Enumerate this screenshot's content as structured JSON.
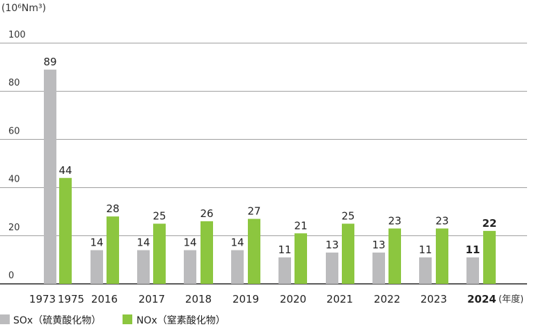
{
  "chart_data": {
    "type": "bar",
    "unit_label": "(10⁶Nm³)",
    "x_suffix": "(年度)",
    "categories": [
      "1973",
      "1975",
      "2016",
      "2017",
      "2018",
      "2019",
      "2020",
      "2021",
      "2022",
      "2023",
      "2024"
    ],
    "ylim": [
      0,
      100
    ],
    "yticks": [
      0,
      20,
      40,
      60,
      80,
      100
    ],
    "grid": true,
    "legend_position": "bottom-left",
    "highlight_category": "2024",
    "series": [
      {
        "name": "SOx（硫黄酸化物）",
        "color": "#bbbbbd",
        "values": [
          89,
          null,
          14,
          14,
          14,
          14,
          11,
          13,
          13,
          11,
          11
        ]
      },
      {
        "name": "NOx（窒素酸化物）",
        "color": "#8cc63f",
        "values": [
          null,
          44,
          28,
          25,
          26,
          27,
          21,
          25,
          23,
          23,
          22
        ]
      }
    ]
  }
}
